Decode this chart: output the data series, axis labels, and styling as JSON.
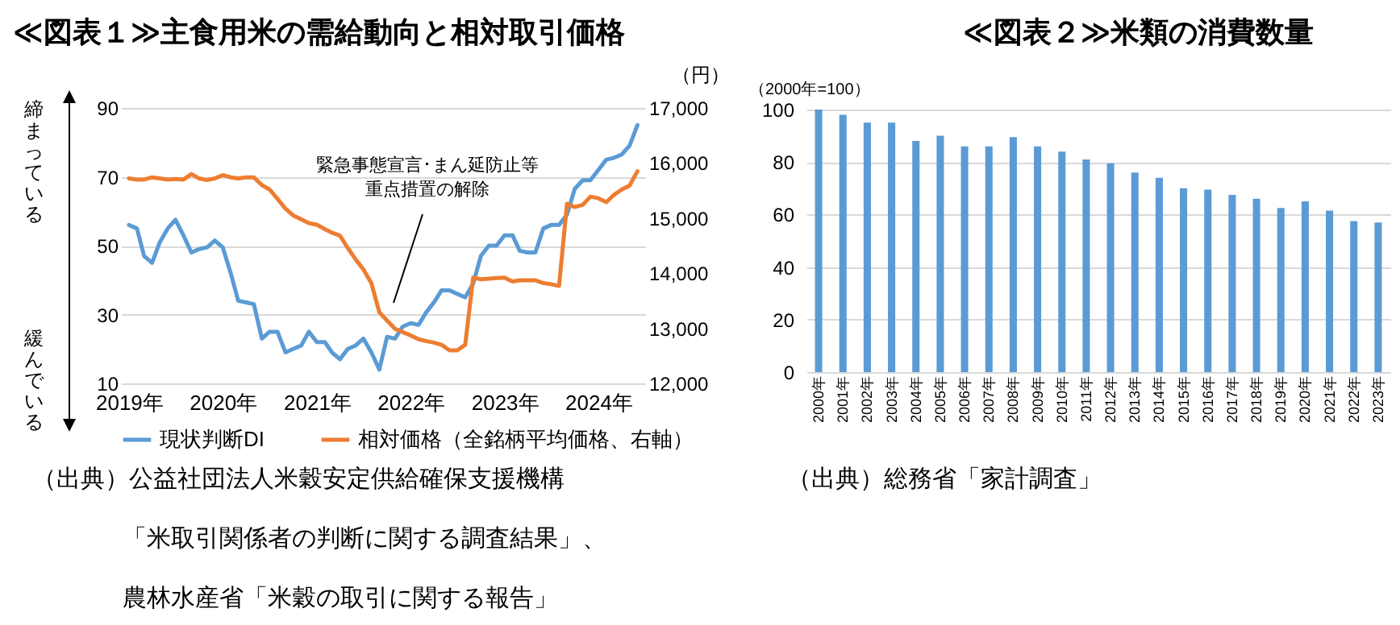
{
  "chart_data": [
    {
      "type": "line",
      "title": "≪図表１≫主食用米の需給動向と相対取引価格",
      "x": [
        "2019-01",
        "2019-02",
        "2019-03",
        "2019-04",
        "2019-05",
        "2019-06",
        "2019-07",
        "2019-08",
        "2019-09",
        "2019-10",
        "2019-11",
        "2019-12",
        "2020-01",
        "2020-02",
        "2020-03",
        "2020-04",
        "2020-05",
        "2020-06",
        "2020-07",
        "2020-08",
        "2020-09",
        "2020-10",
        "2020-11",
        "2020-12",
        "2021-01",
        "2021-02",
        "2021-03",
        "2021-04",
        "2021-05",
        "2021-06",
        "2021-07",
        "2021-08",
        "2021-09",
        "2021-10",
        "2021-11",
        "2021-12",
        "2022-01",
        "2022-02",
        "2022-03",
        "2022-04",
        "2022-05",
        "2022-06",
        "2022-07",
        "2022-08",
        "2022-09",
        "2022-10",
        "2022-11",
        "2022-12",
        "2023-01",
        "2023-02",
        "2023-03",
        "2023-04",
        "2023-05",
        "2023-06",
        "2023-07",
        "2023-08",
        "2023-09",
        "2023-10",
        "2023-11",
        "2023-12",
        "2024-01",
        "2024-02",
        "2024-03",
        "2024-04",
        "2024-05",
        "2024-06"
      ],
      "series": [
        {
          "name": "現状判断DI",
          "color": "#5b9bd5",
          "values": [
            56,
            55,
            47,
            45,
            51,
            55,
            57.5,
            53,
            48,
            49,
            49.5,
            51.5,
            49.5,
            42,
            34,
            33.5,
            33,
            23,
            25,
            25,
            19,
            20,
            21,
            25,
            22,
            22,
            19,
            17,
            20,
            21,
            23,
            19,
            14,
            23.5,
            23,
            26.5,
            27.5,
            27,
            30.5,
            33.5,
            37,
            37,
            36,
            35,
            39,
            47,
            50,
            50,
            53,
            53,
            48.5,
            48,
            48,
            55,
            56,
            56,
            59,
            66.5,
            69,
            69,
            72,
            75,
            75.5,
            76.5,
            79,
            85
          ]
        },
        {
          "name": "相対価格（全銘柄平均価格、右軸）",
          "color": "#ed7d31",
          "axis": "y2",
          "values": [
            15720,
            15700,
            15700,
            15740,
            15720,
            15700,
            15710,
            15700,
            15800,
            15720,
            15690,
            15720,
            15780,
            15740,
            15720,
            15740,
            15740,
            15600,
            15520,
            15350,
            15170,
            15050,
            14980,
            14910,
            14880,
            14800,
            14735,
            14680,
            14460,
            14250,
            14070,
            13820,
            13290,
            13140,
            12990,
            12930,
            12870,
            12800,
            12770,
            12740,
            12700,
            12600,
            12600,
            12700,
            13920,
            13890,
            13900,
            13910,
            13920,
            13850,
            13870,
            13870,
            13870,
            13820,
            13800,
            13770,
            15260,
            15200,
            15240,
            15390,
            15360,
            15290,
            15420,
            15520,
            15590,
            15850
          ]
        }
      ],
      "xlim": [
        "2018-12",
        "2024-07"
      ],
      "xticks": [
        {
          "value": "2019-01",
          "label": "2019年"
        },
        {
          "value": "2020-01",
          "label": "2020年"
        },
        {
          "value": "2021-01",
          "label": "2021年"
        },
        {
          "value": "2022-01",
          "label": "2022年"
        },
        {
          "value": "2023-01",
          "label": "2023年"
        },
        {
          "value": "2024-01",
          "label": "2024年"
        }
      ],
      "ylim": [
        10,
        90
      ],
      "yticks": [
        10,
        30,
        50,
        70,
        90
      ],
      "y2label": "（円）",
      "y2lim": [
        12000,
        17000
      ],
      "y2ticks": [
        {
          "value": 12000,
          "label": "12,000"
        },
        {
          "value": 13000,
          "label": "13,000"
        },
        {
          "value": 14000,
          "label": "14,000"
        },
        {
          "value": 15000,
          "label": "15,000"
        },
        {
          "value": 16000,
          "label": "16,000"
        },
        {
          "value": 17000,
          "label": "17,000"
        }
      ],
      "grid": "y",
      "legend": "bottom",
      "marker": "none",
      "line_style": "solid",
      "annotations": [
        "締まっている",
        "緩んでいる",
        "緊急事態宣言･まん延防止等重点措置の解除",
        "（出典）公益社団法人米穀安定供給確保支援機構「米取引関係者の判断に関する調査結果」、農林水産省「米穀の取引に関する報告」"
      ]
    },
    {
      "type": "bar",
      "title": "≪図表２≫米類の消費数量",
      "ylabel": "（2000年=100）",
      "categories": [
        "2000年",
        "2001年",
        "2002年",
        "2003年",
        "2004年",
        "2005年",
        "2006年",
        "2007年",
        "2008年",
        "2009年",
        "2010年",
        "2011年",
        "2012年",
        "2013年",
        "2014年",
        "2015年",
        "2016年",
        "2017年",
        "2018年",
        "2019年",
        "2020年",
        "2021年",
        "2022年",
        "2023年"
      ],
      "values": [
        100,
        98,
        95,
        95,
        88,
        90,
        86,
        86,
        89.5,
        86,
        84,
        81,
        79.5,
        76,
        74,
        70,
        69.5,
        67.5,
        66,
        62.5,
        65,
        61.5,
        57.5,
        57
      ],
      "color": "#5b9bd5",
      "ylim": [
        0,
        100
      ],
      "yticks": [
        0,
        20,
        40,
        60,
        80,
        100
      ],
      "grid": "y",
      "annotations": [
        "（出典）総務省「家計調査」"
      ]
    }
  ]
}
